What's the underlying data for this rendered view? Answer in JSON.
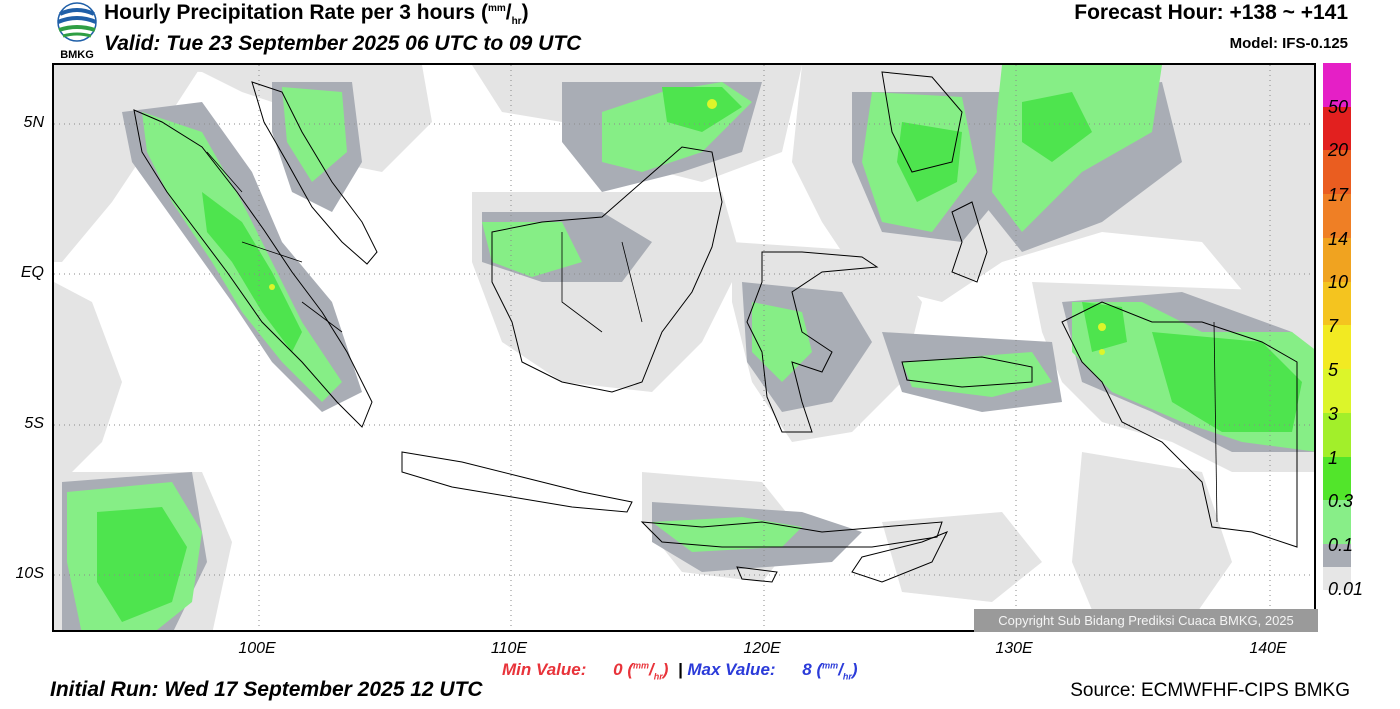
{
  "header": {
    "title": "Hourly Precipitation Rate per 3 hours",
    "title_unit_top": "mm",
    "title_unit_bottom": "hr",
    "valid": "Valid: Tue 23 September 2025 06 UTC to 09 UTC",
    "forecast_hour": "Forecast Hour: +138 ~ +141",
    "model": "Model: IFS-0.125"
  },
  "logo": {
    "text": "BMKG",
    "colors": [
      "#1f5fa8",
      "#2f9e44"
    ]
  },
  "map": {
    "lat_labels": [
      "5N",
      "EQ",
      "5S",
      "10S"
    ],
    "lon_labels": [
      "100E",
      "110E",
      "120E",
      "130E",
      "140E"
    ],
    "copyright": "Copyright Sub Bidang Prediksi Cuaca BMKG, 2025",
    "colors": {
      "land_outline": "#000000",
      "light_rain": "#e4e4e4",
      "gray_rain": "#a9adb5",
      "green_light": "#86ee86",
      "green": "#4ee44e",
      "green_dark": "#35c835"
    }
  },
  "legend": {
    "labels": [
      "50",
      "20",
      "17",
      "14",
      "10",
      "7",
      "5",
      "3",
      "1",
      "0.3",
      "0.1",
      "0.01"
    ],
    "colors": [
      "#e51fc6",
      "#e2201f",
      "#ea5d20",
      "#ef7f25",
      "#f0a320",
      "#f4c41f",
      "#f2ea22",
      "#dcf52a",
      "#a2ef2a",
      "#52e52b",
      "#88ee88",
      "#a8acb4",
      "#e6e6e6"
    ]
  },
  "footer": {
    "min_label": "Min Value:",
    "min_value": "0",
    "max_label": "Max Value:",
    "max_value": "8",
    "unit_top": "mm",
    "unit_bottom": "hr",
    "initial_run": "Initial Run: Wed 17 September 2025 12 UTC",
    "source": "Source: ECMWFHF-CIPS BMKG"
  }
}
